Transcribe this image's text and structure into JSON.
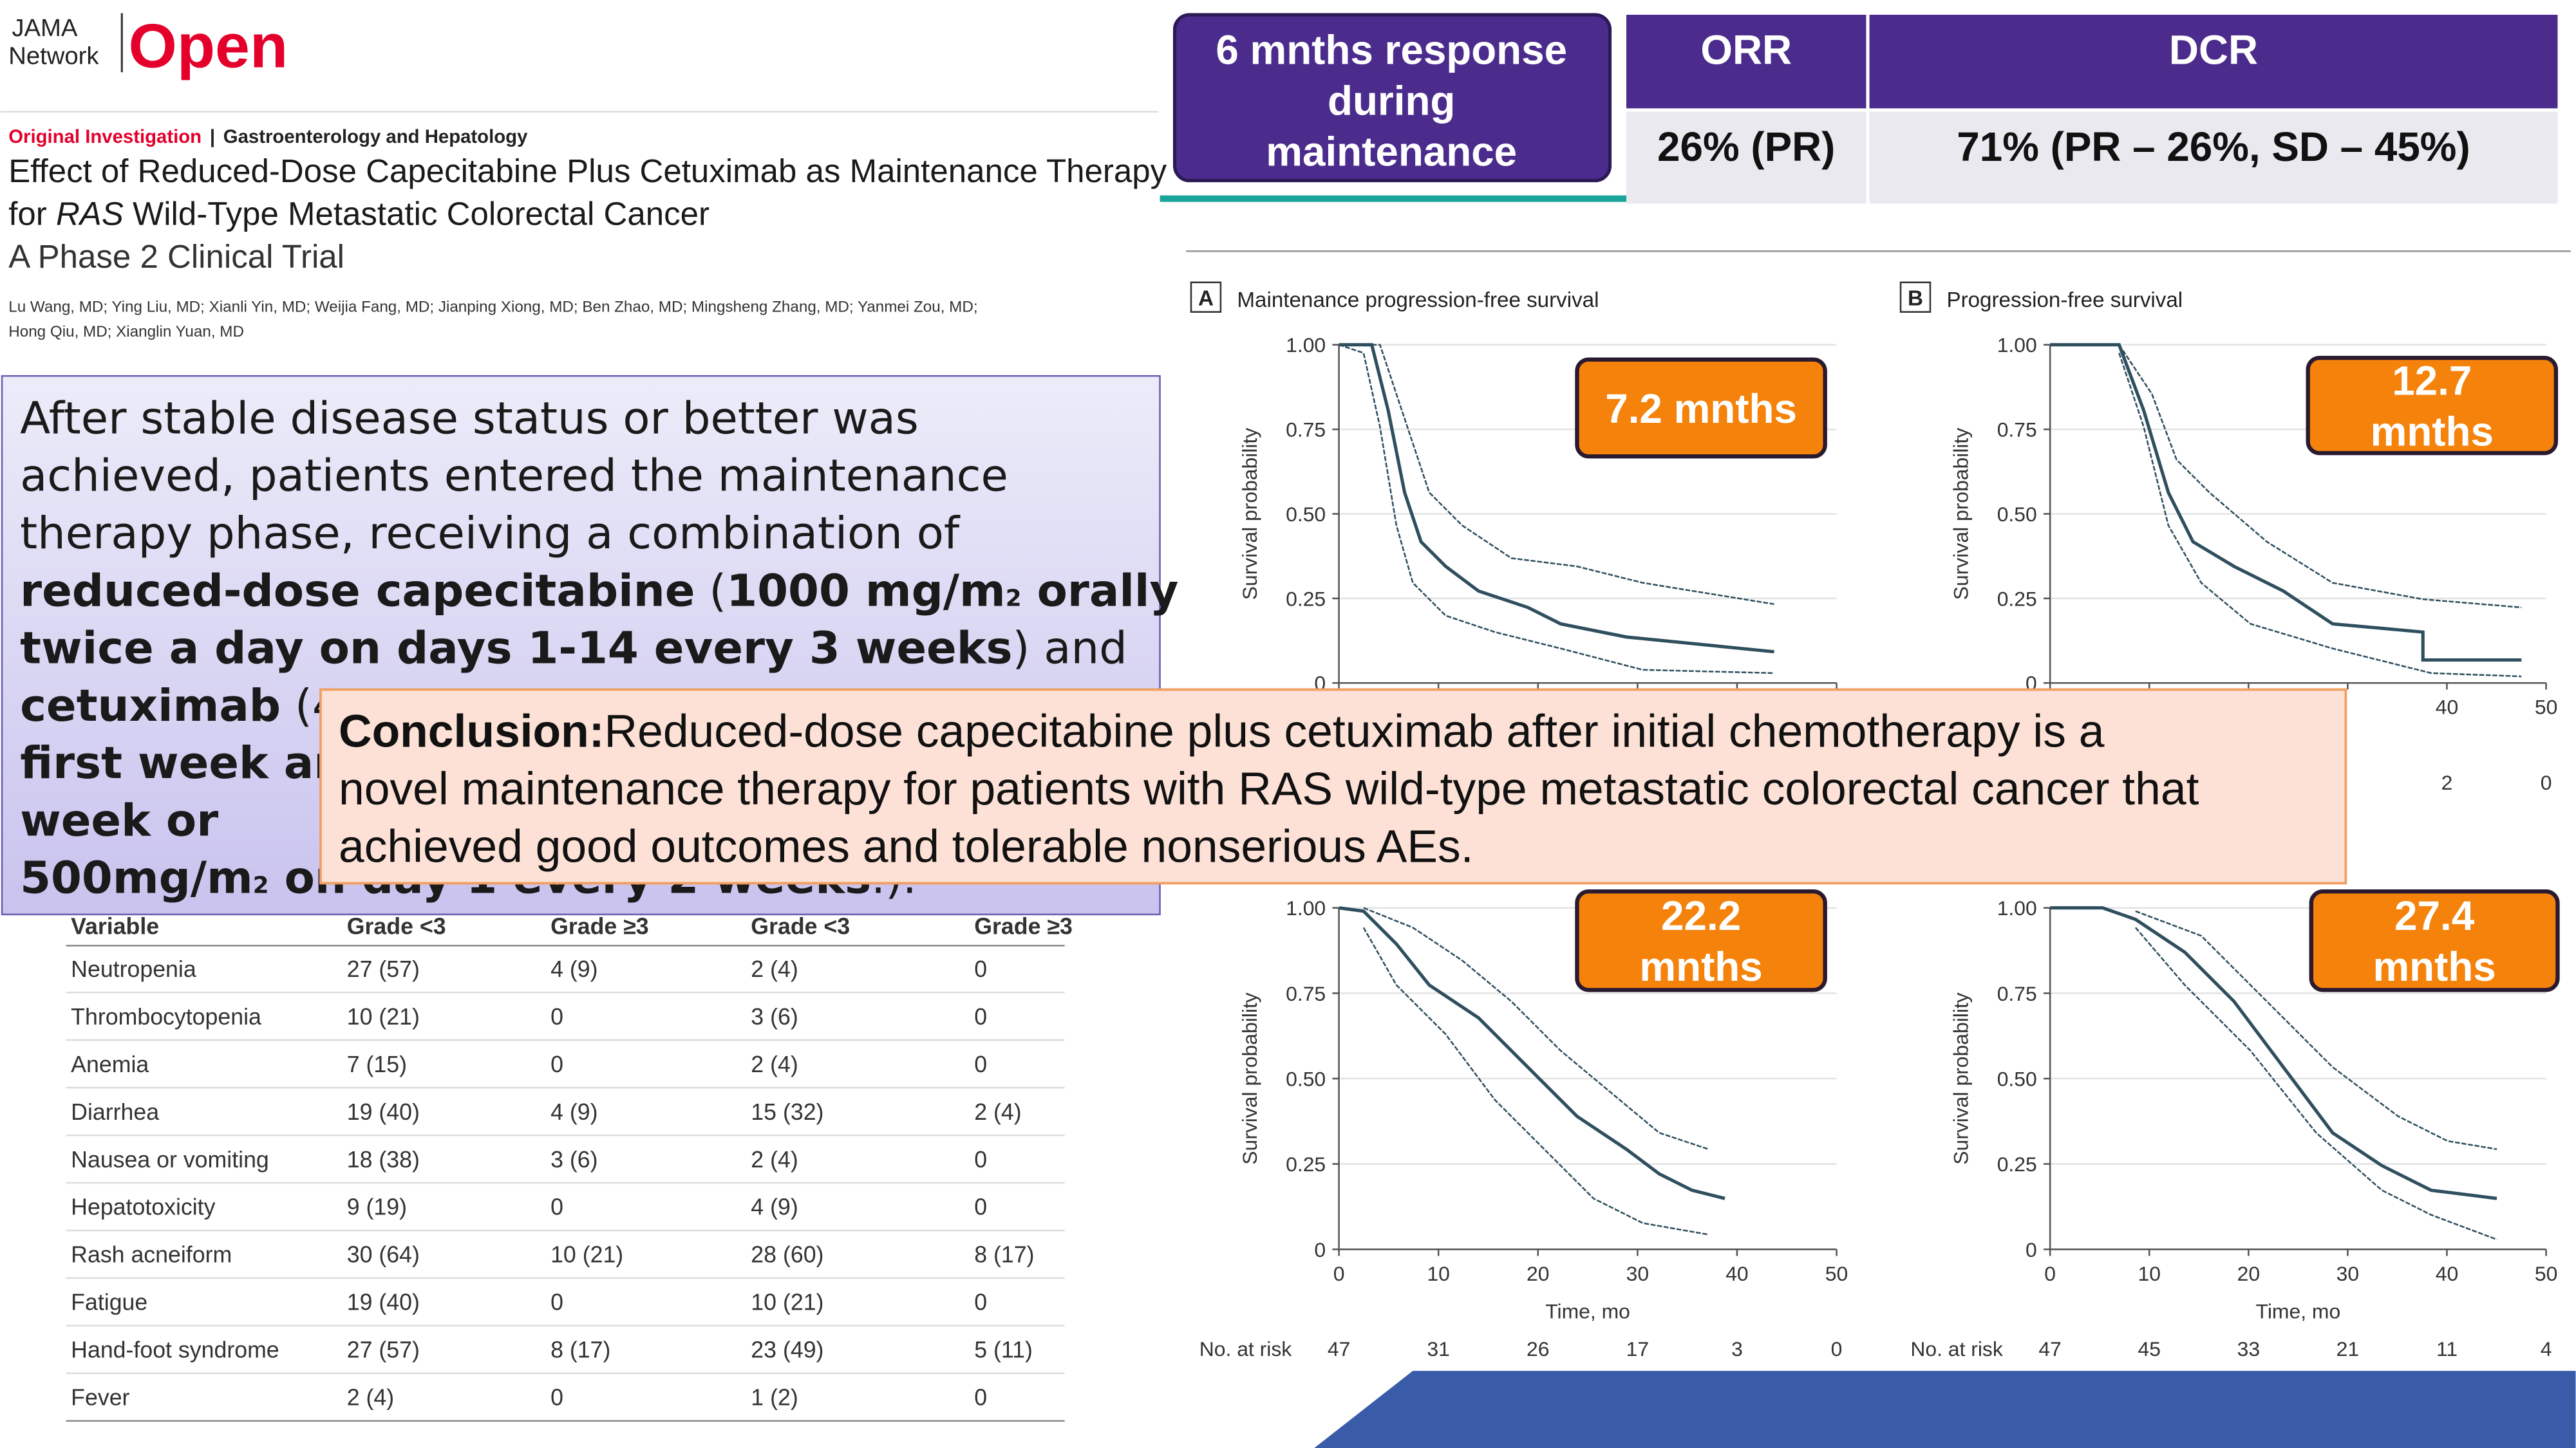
{
  "header": {
    "journal_line1": "JAMA",
    "journal_line2": "Network",
    "brand": "Open",
    "category": "Original Investigation",
    "separator": "|",
    "section": "Gastroenterology and Hepatology",
    "title_line1": "Effect of Reduced-Dose Capecitabine Plus Cetuximab as Maintenance Therapy",
    "title_line2": [
      "for ",
      "RAS",
      " Wild-Type Metastatic Colorectal Cancer"
    ],
    "subtitle": "A Phase 2 Clinical Trial",
    "authors_line1": "Lu Wang, MD; Ying Liu, MD; Xianli Yin, MD; Weijia Fang, MD; Jianping Xiong, MD; Ben Zhao, MD; Mingsheng Zhang, MD; Yanmei Zou, MD;",
    "authors_line2": "Hong Qiu, MD; Xianglin Yuan, MD"
  },
  "intro": {
    "lines": [
      [
        {
          "text": "After stable disease status or better was",
          "style": "normal"
        }
      ],
      [
        {
          "text": "achieved, patients entered the maintenance",
          "style": "normal"
        }
      ],
      [
        {
          "text": "therapy phase, receiving a combination of",
          "style": "normal"
        }
      ],
      [
        {
          "text": "reduced-dose capecitabine",
          "style": "bold"
        },
        {
          "text": " (",
          "style": "normal"
        },
        {
          "text": "1000 mg/m",
          "style": "bold"
        },
        {
          "text": "2",
          "style": "sub"
        },
        {
          "text": " orally",
          "style": "bold"
        }
      ],
      [
        {
          "text": "twice a day on days 1-14 every 3 weeks",
          "style": "bold"
        },
        {
          "text": ") and",
          "style": "normal"
        }
      ],
      [
        {
          "text": "cetuximab",
          "style": "bold"
        },
        {
          "text": " (4",
          "style": "normal"
        }
      ],
      [
        {
          "text": "first week ar",
          "style": "bold"
        }
      ],
      [
        {
          "text": "week or",
          "style": "bold"
        }
      ],
      [
        {
          "text": "500mg/m",
          "style": "bold"
        },
        {
          "text": "2",
          "style": "sub"
        },
        {
          "text": " on day 1 every 2 weeks",
          "style": "bold"
        },
        {
          "text": ".).",
          "style": "normal"
        }
      ]
    ]
  },
  "response": {
    "label_lines": [
      "6 mnths response",
      "during",
      "maintenance"
    ],
    "headers": [
      "ORR",
      "DCR"
    ],
    "values": [
      "26% (PR)",
      "71% (PR – 26%, SD – 45%)"
    ]
  },
  "panels": [
    {
      "letter": "A",
      "title": "Maintenance progression-free survival",
      "median": [
        "7.2 mnths"
      ],
      "ylabel": "Survival probability",
      "yticks": [
        "1.00",
        "0.75",
        "0.50",
        "0.25",
        "0"
      ]
    },
    {
      "letter": "B",
      "title": "Progression-free survival",
      "median": [
        "12.7",
        "mnths"
      ],
      "ylabel": "Survival probability",
      "yticks": [
        "1.00",
        "0.75",
        "0.50",
        "0.25",
        "0"
      ],
      "xticks": [
        "40",
        "50"
      ],
      "at_risk": [
        "2",
        "0"
      ]
    },
    {
      "median": [
        "22.2",
        "mnths"
      ],
      "ylabel": "Survival probability",
      "yticks": [
        "1.00",
        "0.75",
        "0.50",
        "0.25",
        "0"
      ],
      "xticks": [
        "0",
        "10",
        "20",
        "30",
        "40",
        "50"
      ],
      "xlabel": "Time, mo",
      "at_risk_label": "No. at risk",
      "at_risk": [
        "47",
        "31",
        "26",
        "17",
        "3",
        "0"
      ]
    },
    {
      "median": [
        "27.4",
        "mnths"
      ],
      "ylabel": "Survival probability",
      "yticks": [
        "1.00",
        "0.75",
        "0.50",
        "0.25",
        "0"
      ],
      "xticks": [
        "0",
        "10",
        "20",
        "30",
        "40",
        "50"
      ],
      "xlabel": "Time, mo",
      "at_risk_label": "No. at risk",
      "at_risk": [
        "47",
        "45",
        "33",
        "21",
        "11",
        "4"
      ]
    }
  ],
  "ae_table": {
    "header": [
      "Variable",
      "Grade <3",
      "Grade ≥3",
      "Grade <3",
      "Grade ≥3"
    ],
    "rows": [
      [
        "Neutropenia",
        "27 (57)",
        "4 (9)",
        "2 (4)",
        "0"
      ],
      [
        "Thrombocytopenia",
        "10 (21)",
        "0",
        "3 (6)",
        "0"
      ],
      [
        "Anemia",
        "7 (15)",
        "0",
        "2 (4)",
        "0"
      ],
      [
        "Diarrhea",
        "19 (40)",
        "4 (9)",
        "15 (32)",
        "2 (4)"
      ],
      [
        "Nausea or vomiting",
        "18 (38)",
        "3 (6)",
        "2 (4)",
        "0"
      ],
      [
        "Hepatotoxicity",
        "9 (19)",
        "0",
        "4 (9)",
        "0"
      ],
      [
        "Rash acneiform",
        "30 (64)",
        "10 (21)",
        "28 (60)",
        "8 (17)"
      ],
      [
        "Fatigue",
        "19 (40)",
        "0",
        "10 (21)",
        "0"
      ],
      [
        "Hand-foot syndrome",
        "27 (57)",
        "8 (17)",
        "23 (49)",
        "5 (11)"
      ],
      [
        "Fever",
        "2 (4)",
        "0",
        "1 (2)",
        "0"
      ]
    ]
  },
  "conclusion": {
    "label": "Conclusion:",
    "lines": [
      "Reduced-dose capecitabine plus cetuximab after initial chemotherapy is a",
      "novel maintenance therapy for patients with RAS wild-type metastatic colorectal cancer that",
      "achieved good outcomes and tolerable nonserious AEs."
    ]
  }
}
